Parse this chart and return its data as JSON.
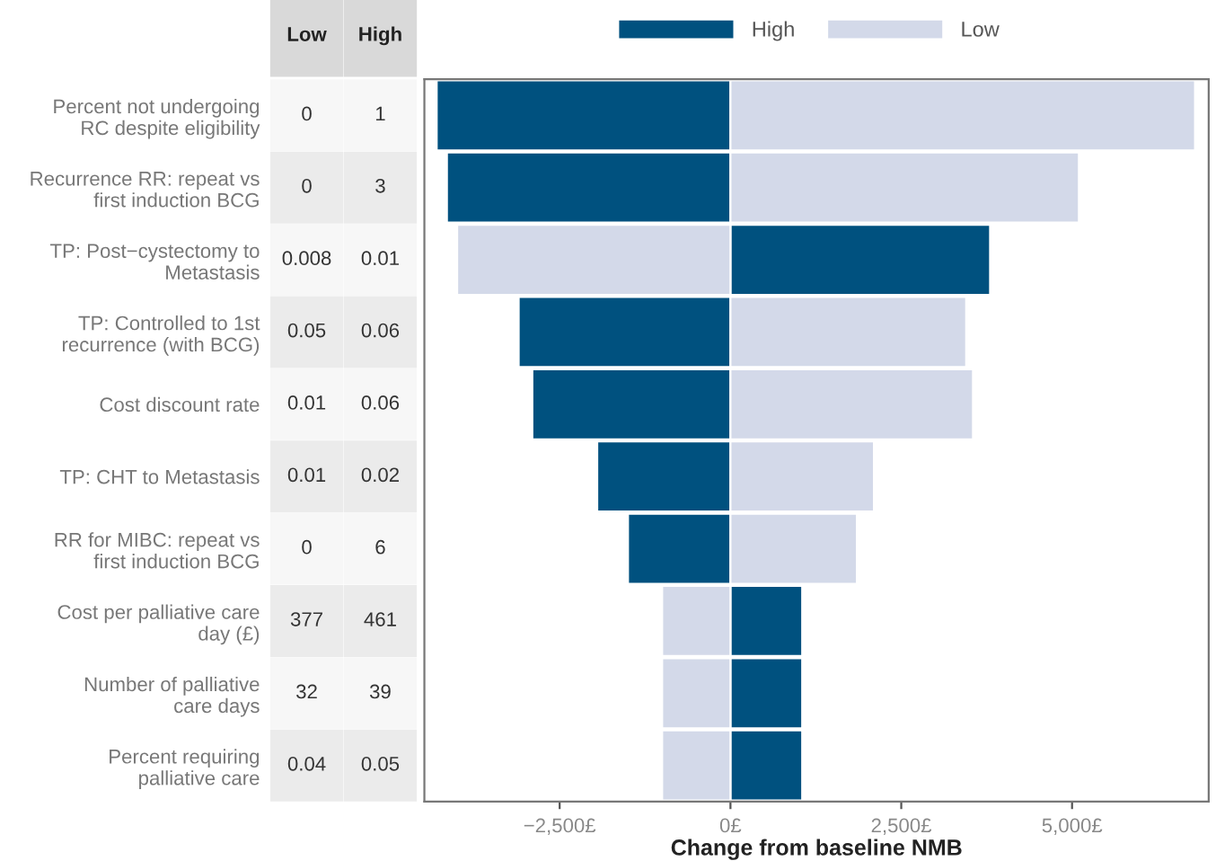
{
  "chart_data": {
    "type": "bar",
    "orientation": "horizontal",
    "xlabel": "Change from baseline NMB",
    "categories": [
      "Percent not undergoing\nRC despite eligibility",
      "Recurrence RR: repeat vs\nfirst induction BCG",
      "TP: Post−cystectomy to\nMetastasis",
      "TP: Controlled to 1st\nrecurrence (with BCG)",
      "Cost discount rate",
      "TP: CHT to Metastasis",
      "RR for MIBC: repeat vs\nfirst induction BCG",
      "Cost per palliative care\nday (£)",
      "Number of palliative\ncare days",
      "Percent requiring\npalliative care"
    ],
    "series": [
      {
        "name": "High",
        "color": "#00517f",
        "values": [
          -4300,
          -4150,
          3800,
          -3100,
          -2900,
          -1950,
          -1500,
          1050,
          1050,
          1050
        ]
      },
      {
        "name": "Low",
        "color": "#d3d9e9",
        "values": [
          6800,
          5100,
          -4000,
          3450,
          3550,
          2100,
          1850,
          -1000,
          -1000,
          -1000
        ]
      }
    ],
    "stacked": true,
    "xlim": [
      -4480,
      7000
    ],
    "xticks": [
      {
        "value": -2500,
        "label": "−2,500£"
      },
      {
        "value": 0,
        "label": "0£"
      },
      {
        "value": 2500,
        "label": "2,500£"
      },
      {
        "value": 5000,
        "label": "5,000£"
      }
    ],
    "grid": false,
    "legend": "top",
    "annotations": [
      "Low",
      "High",
      "0",
      "1",
      "0",
      "3",
      "0.008",
      "0.01",
      "0.05",
      "0.06",
      "0.01",
      "0.06",
      "0.01",
      "0.02",
      "0",
      "6",
      "377",
      "461",
      "32",
      "39",
      "0.04",
      "0.05"
    ]
  }
}
